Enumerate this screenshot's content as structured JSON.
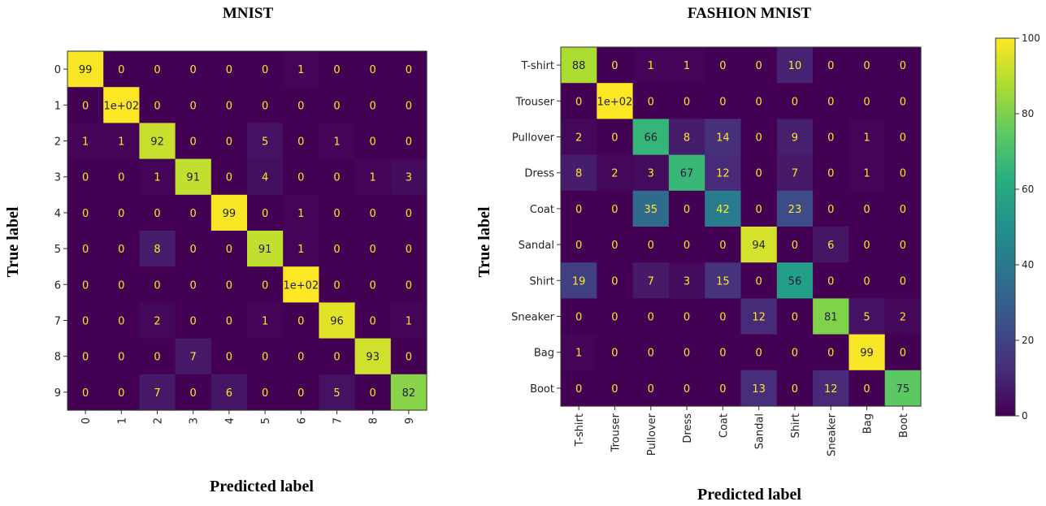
{
  "chart_data": [
    {
      "type": "heatmap",
      "title": "MNIST",
      "xlabel": "Predicted label",
      "ylabel": "True label",
      "x_categories": [
        "0",
        "1",
        "2",
        "3",
        "4",
        "5",
        "6",
        "7",
        "8",
        "9"
      ],
      "y_categories": [
        "0",
        "1",
        "2",
        "3",
        "4",
        "5",
        "6",
        "7",
        "8",
        "9"
      ],
      "values": [
        [
          99,
          0,
          0,
          0,
          0,
          0,
          1,
          0,
          0,
          0
        ],
        [
          0,
          100,
          0,
          0,
          0,
          0,
          0,
          0,
          0,
          0
        ],
        [
          1,
          1,
          92,
          0,
          0,
          5,
          0,
          1,
          0,
          0
        ],
        [
          0,
          0,
          1,
          91,
          0,
          4,
          0,
          0,
          1,
          3
        ],
        [
          0,
          0,
          0,
          0,
          99,
          0,
          1,
          0,
          0,
          0
        ],
        [
          0,
          0,
          8,
          0,
          0,
          91,
          1,
          0,
          0,
          0
        ],
        [
          0,
          0,
          0,
          0,
          0,
          0,
          100,
          0,
          0,
          0
        ],
        [
          0,
          0,
          2,
          0,
          0,
          1,
          0,
          96,
          0,
          1
        ],
        [
          0,
          0,
          0,
          7,
          0,
          0,
          0,
          0,
          93,
          0
        ],
        [
          0,
          0,
          7,
          0,
          6,
          0,
          0,
          5,
          0,
          82
        ]
      ],
      "value_labels": [
        [
          "99",
          "0",
          "0",
          "0",
          "0",
          "0",
          "1",
          "0",
          "0",
          "0"
        ],
        [
          "0",
          "1e+02",
          "0",
          "0",
          "0",
          "0",
          "0",
          "0",
          "0",
          "0"
        ],
        [
          "1",
          "1",
          "92",
          "0",
          "0",
          "5",
          "0",
          "1",
          "0",
          "0"
        ],
        [
          "0",
          "0",
          "1",
          "91",
          "0",
          "4",
          "0",
          "0",
          "1",
          "3"
        ],
        [
          "0",
          "0",
          "0",
          "0",
          "99",
          "0",
          "1",
          "0",
          "0",
          "0"
        ],
        [
          "0",
          "0",
          "8",
          "0",
          "0",
          "91",
          "1",
          "0",
          "0",
          "0"
        ],
        [
          "0",
          "0",
          "0",
          "0",
          "0",
          "0",
          "1e+02",
          "0",
          "0",
          "0"
        ],
        [
          "0",
          "0",
          "2",
          "0",
          "0",
          "1",
          "0",
          "96",
          "0",
          "1"
        ],
        [
          "0",
          "0",
          "0",
          "7",
          "0",
          "0",
          "0",
          "0",
          "93",
          "0"
        ],
        [
          "0",
          "0",
          "7",
          "0",
          "6",
          "0",
          "0",
          "5",
          "0",
          "82"
        ]
      ]
    },
    {
      "type": "heatmap",
      "title": "FASHION MNIST",
      "xlabel": "Predicted label",
      "ylabel": "True label",
      "x_categories": [
        "T-shirt",
        "Trouser",
        "Pullover",
        "Dress",
        "Coat",
        "Sandal",
        "Shirt",
        "Sneaker",
        "Bag",
        "Boot"
      ],
      "y_categories": [
        "T-shirt",
        "Trouser",
        "Pullover",
        "Dress",
        "Coat",
        "Sandal",
        "Shirt",
        "Sneaker",
        "Bag",
        "Boot"
      ],
      "values": [
        [
          88,
          0,
          1,
          1,
          0,
          0,
          10,
          0,
          0,
          0
        ],
        [
          0,
          100,
          0,
          0,
          0,
          0,
          0,
          0,
          0,
          0
        ],
        [
          2,
          0,
          66,
          8,
          14,
          0,
          9,
          0,
          1,
          0
        ],
        [
          8,
          2,
          3,
          67,
          12,
          0,
          7,
          0,
          1,
          0
        ],
        [
          0,
          0,
          35,
          0,
          42,
          0,
          23,
          0,
          0,
          0
        ],
        [
          0,
          0,
          0,
          0,
          0,
          94,
          0,
          6,
          0,
          0
        ],
        [
          19,
          0,
          7,
          3,
          15,
          0,
          56,
          0,
          0,
          0
        ],
        [
          0,
          0,
          0,
          0,
          0,
          12,
          0,
          81,
          5,
          2
        ],
        [
          1,
          0,
          0,
          0,
          0,
          0,
          0,
          0,
          99,
          0
        ],
        [
          0,
          0,
          0,
          0,
          0,
          13,
          0,
          12,
          0,
          75
        ]
      ],
      "value_labels": [
        [
          "88",
          "0",
          "1",
          "1",
          "0",
          "0",
          "10",
          "0",
          "0",
          "0"
        ],
        [
          "0",
          "1e+02",
          "0",
          "0",
          "0",
          "0",
          "0",
          "0",
          "0",
          "0"
        ],
        [
          "2",
          "0",
          "66",
          "8",
          "14",
          "0",
          "9",
          "0",
          "1",
          "0"
        ],
        [
          "8",
          "2",
          "3",
          "67",
          "12",
          "0",
          "7",
          "0",
          "1",
          "0"
        ],
        [
          "0",
          "0",
          "35",
          "0",
          "42",
          "0",
          "23",
          "0",
          "0",
          "0"
        ],
        [
          "0",
          "0",
          "0",
          "0",
          "0",
          "94",
          "0",
          "6",
          "0",
          "0"
        ],
        [
          "19",
          "0",
          "7",
          "3",
          "15",
          "0",
          "56",
          "0",
          "0",
          "0"
        ],
        [
          "0",
          "0",
          "0",
          "0",
          "0",
          "12",
          "0",
          "81",
          "5",
          "2"
        ],
        [
          "1",
          "0",
          "0",
          "0",
          "0",
          "0",
          "0",
          "0",
          "99",
          "0"
        ],
        [
          "0",
          "0",
          "0",
          "0",
          "0",
          "13",
          "0",
          "12",
          "0",
          "75"
        ]
      ]
    }
  ],
  "colorbar": {
    "colormap": "viridis",
    "range": [
      0,
      100
    ],
    "ticks": [
      "0",
      "20",
      "40",
      "60",
      "80",
      "100"
    ]
  }
}
